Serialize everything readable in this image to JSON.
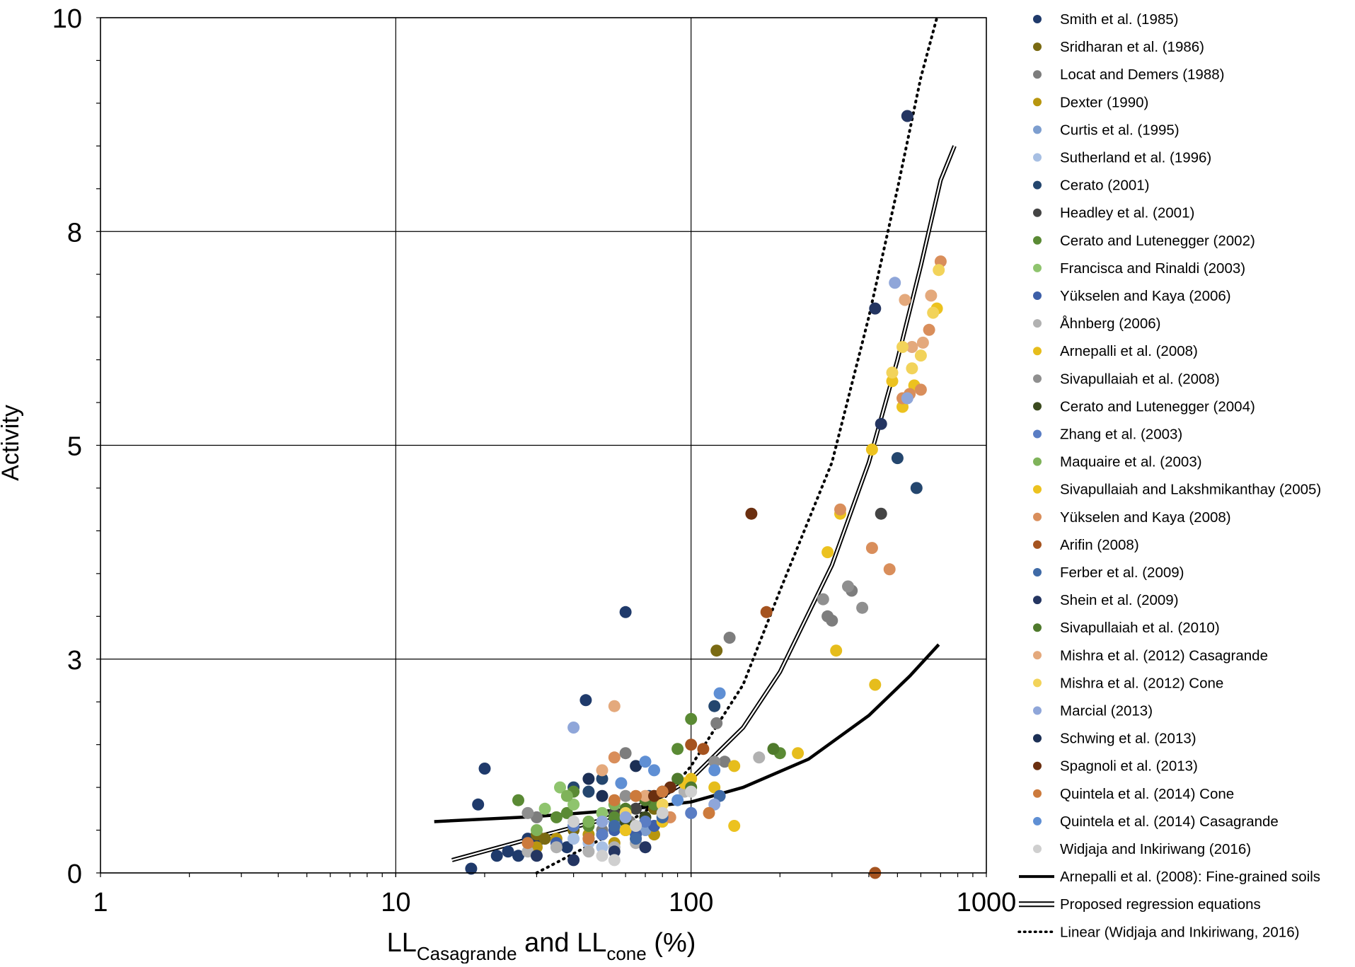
{
  "chart_data": {
    "type": "scatter",
    "xlabel": {
      "parts": [
        {
          "text": "LL",
          "sub": false
        },
        {
          "text": "Casagrande",
          "sub": true
        },
        {
          "text": " and LL",
          "sub": false
        },
        {
          "text": "cone",
          "sub": true
        },
        {
          "text": " (%)",
          "sub": false
        }
      ]
    },
    "ylabel": "Activity",
    "x_scale": "log",
    "xlim": [
      1,
      1000
    ],
    "ylim": [
      0,
      10
    ],
    "x_ticks": [
      {
        "value": 1,
        "label": "1"
      },
      {
        "value": 10,
        "label": "10"
      },
      {
        "value": 100,
        "label": "100"
      },
      {
        "value": 1000,
        "label": "1000"
      }
    ],
    "y_ticks": [
      {
        "value": 0,
        "label": "0"
      },
      {
        "value": 2.5,
        "label": "3"
      },
      {
        "value": 5,
        "label": "5"
      },
      {
        "value": 7.5,
        "label": "8"
      },
      {
        "value": 10,
        "label": "10"
      }
    ],
    "grid": true,
    "legend_position": "right",
    "series": [
      {
        "name": "Smith et al. (1985)",
        "color": "#1f3a6b",
        "points": [
          [
            18,
            0.05
          ],
          [
            19,
            0.8
          ],
          [
            20,
            1.22
          ],
          [
            22,
            0.2
          ],
          [
            24,
            0.25
          ],
          [
            26,
            0.2
          ],
          [
            28,
            0.4
          ],
          [
            30,
            0.35
          ],
          [
            38,
            0.3
          ],
          [
            44,
            2.02
          ],
          [
            60,
            3.05
          ]
        ]
      },
      {
        "name": "Sridharan et al. (1986)",
        "color": "#7a6a12",
        "points": [
          [
            30,
            0.45
          ],
          [
            32,
            0.4
          ],
          [
            35,
            0.35
          ],
          [
            40,
            0.5
          ],
          [
            75,
            0.75
          ],
          [
            122,
            2.6
          ]
        ]
      },
      {
        "name": "Locat and Demers (1988)",
        "color": "#7d7d7d",
        "points": [
          [
            30,
            0.65
          ],
          [
            50,
            0.5
          ],
          [
            60,
            1.4
          ],
          [
            62,
            0.6
          ],
          [
            122,
            1.75
          ],
          [
            130,
            1.3
          ],
          [
            135,
            2.75
          ],
          [
            290,
            3.0
          ],
          [
            300,
            2.95
          ],
          [
            350,
            3.3
          ]
        ]
      },
      {
        "name": "Dexter (1990)",
        "color": "#b8960f",
        "points": [
          [
            30,
            0.3
          ],
          [
            35,
            0.4
          ],
          [
            45,
            0.45
          ],
          [
            55,
            0.35
          ],
          [
            65,
            0.4
          ],
          [
            75,
            0.45
          ]
        ]
      },
      {
        "name": "Curtis et al. (1995)",
        "color": "#7d9ecf",
        "points": [
          [
            55,
            0.6
          ],
          [
            60,
            0.5
          ],
          [
            70,
            0.5
          ],
          [
            80,
            0.6
          ]
        ]
      },
      {
        "name": "Sutherland et al. (1996)",
        "color": "#a7bfe3",
        "points": [
          [
            40,
            0.4
          ],
          [
            45,
            0.35
          ],
          [
            50,
            0.3
          ],
          [
            60,
            0.55
          ]
        ]
      },
      {
        "name": "Cerato (2001)",
        "color": "#24466e",
        "points": [
          [
            40,
            1.0
          ],
          [
            45,
            0.95
          ],
          [
            50,
            1.1
          ],
          [
            72,
            0.9
          ],
          [
            120,
            1.95
          ],
          [
            500,
            4.85
          ],
          [
            580,
            4.5
          ]
        ]
      },
      {
        "name": "Headley et al. (2001)",
        "color": "#444444",
        "points": [
          [
            55,
            0.7
          ],
          [
            65,
            0.75
          ],
          [
            75,
            0.8
          ],
          [
            440,
            4.2
          ]
        ]
      },
      {
        "name": "Cerato and Lutenegger (2002)",
        "color": "#5a8a34",
        "points": [
          [
            26,
            0.85
          ],
          [
            35,
            0.65
          ],
          [
            38,
            0.7
          ],
          [
            40,
            0.95
          ],
          [
            45,
            0.55
          ],
          [
            55,
            0.65
          ],
          [
            75,
            0.8
          ],
          [
            90,
            1.45
          ],
          [
            100,
            1.8
          ],
          [
            200,
            1.4
          ]
        ]
      },
      {
        "name": "Francisca and Rinaldi (2003)",
        "color": "#8fc46e",
        "points": [
          [
            32,
            0.75
          ],
          [
            36,
            1.0
          ],
          [
            40,
            0.8
          ],
          [
            45,
            0.6
          ],
          [
            50,
            0.7
          ]
        ]
      },
      {
        "name": "Yükselen and Kaya (2006)",
        "color": "#3d5fa8",
        "points": [
          [
            35,
            0.35
          ],
          [
            45,
            0.4
          ],
          [
            55,
            0.5
          ],
          [
            65,
            0.45
          ],
          [
            75,
            0.55
          ]
        ]
      },
      {
        "name": "Åhnberg (2006)",
        "color": "#b1b1b1",
        "points": [
          [
            28,
            0.25
          ],
          [
            35,
            0.3
          ],
          [
            45,
            0.25
          ],
          [
            55,
            0.3
          ],
          [
            65,
            0.35
          ],
          [
            95,
            0.95
          ],
          [
            170,
            1.35
          ]
        ]
      },
      {
        "name": "Arnepalli et al. (2008)",
        "color": "#e6bd1c",
        "points": [
          [
            100,
            1.1
          ],
          [
            120,
            1.0
          ],
          [
            140,
            1.25
          ],
          [
            230,
            1.4
          ],
          [
            310,
            2.6
          ],
          [
            420,
            2.2
          ]
        ]
      },
      {
        "name": "Sivapullaiah et al. (2008)",
        "color": "#8f8f8f",
        "points": [
          [
            28,
            0.7
          ],
          [
            60,
            0.9
          ],
          [
            120,
            1.3
          ],
          [
            280,
            3.2
          ],
          [
            340,
            3.35
          ],
          [
            380,
            3.1
          ]
        ]
      },
      {
        "name": "Cerato and Lutenegger (2004)",
        "color": "#3b4a1f",
        "points": [
          [
            50,
            0.45
          ],
          [
            60,
            0.6
          ],
          [
            70,
            0.65
          ],
          [
            80,
            0.7
          ]
        ]
      },
      {
        "name": "Zhang et al. (2003)",
        "color": "#5a7dc4",
        "points": [
          [
            40,
            0.55
          ],
          [
            50,
            0.45
          ],
          [
            60,
            0.5
          ],
          [
            70,
            0.6
          ],
          [
            100,
            0.7
          ]
        ]
      },
      {
        "name": "Maquaire et al. (2003)",
        "color": "#7fb35a",
        "points": [
          [
            30,
            0.5
          ],
          [
            38,
            0.9
          ],
          [
            45,
            0.6
          ],
          [
            55,
            0.8
          ]
        ]
      },
      {
        "name": "Sivapullaiah and Lakshmikanthay (2005)",
        "color": "#ecc21f",
        "points": [
          [
            60,
            0.5
          ],
          [
            80,
            0.6
          ],
          [
            95,
            1.05
          ],
          [
            140,
            0.55
          ],
          [
            290,
            3.75
          ],
          [
            320,
            4.2
          ],
          [
            410,
            4.95
          ],
          [
            480,
            5.75
          ],
          [
            520,
            5.45
          ],
          [
            570,
            5.7
          ],
          [
            680,
            6.6
          ]
        ]
      },
      {
        "name": "Yükselen and Kaya (2008)",
        "color": "#d98e5b",
        "points": [
          [
            55,
            1.35
          ],
          [
            75,
            0.9
          ],
          [
            85,
            0.65
          ],
          [
            320,
            4.25
          ],
          [
            410,
            3.8
          ],
          [
            470,
            3.55
          ],
          [
            520,
            5.55
          ],
          [
            550,
            5.6
          ],
          [
            600,
            5.65
          ],
          [
            640,
            6.35
          ],
          [
            700,
            7.15
          ]
        ]
      },
      {
        "name": "Arifin (2008)",
        "color": "#a5531f",
        "points": [
          [
            100,
            1.5
          ],
          [
            110,
            1.45
          ],
          [
            180,
            3.05
          ],
          [
            420,
            0.0
          ]
        ]
      },
      {
        "name": "Ferber et al. (2009)",
        "color": "#3f6aa6",
        "points": [
          [
            55,
            0.55
          ],
          [
            65,
            0.4
          ],
          [
            80,
            0.65
          ],
          [
            125,
            0.9
          ]
        ]
      },
      {
        "name": "Shein et al. (2009)",
        "color": "#243561",
        "points": [
          [
            30,
            0.2
          ],
          [
            40,
            0.15
          ],
          [
            55,
            0.25
          ],
          [
            70,
            0.3
          ],
          [
            420,
            6.6
          ],
          [
            440,
            5.25
          ],
          [
            540,
            8.85
          ]
        ]
      },
      {
        "name": "Sivapullaiah et al. (2010)",
        "color": "#4f7a2c",
        "points": [
          [
            60,
            0.75
          ],
          [
            70,
            0.85
          ],
          [
            90,
            1.1
          ],
          [
            100,
            1.0
          ],
          [
            190,
            1.45
          ]
        ]
      },
      {
        "name": "Mishra et al. (2012) Casagrande",
        "color": "#e4a97c",
        "points": [
          [
            50,
            1.2
          ],
          [
            55,
            1.95
          ],
          [
            70,
            0.9
          ],
          [
            530,
            6.7
          ],
          [
            560,
            6.15
          ],
          [
            610,
            6.2
          ],
          [
            650,
            6.75
          ]
        ]
      },
      {
        "name": "Mishra et al. (2012) Cone",
        "color": "#f2d35a",
        "points": [
          [
            60,
            0.7
          ],
          [
            80,
            0.8
          ],
          [
            480,
            5.85
          ],
          [
            520,
            6.15
          ],
          [
            560,
            5.9
          ],
          [
            600,
            6.05
          ],
          [
            660,
            6.55
          ],
          [
            690,
            7.05
          ]
        ]
      },
      {
        "name": "Marcial (2013)",
        "color": "#8fa6d9",
        "points": [
          [
            40,
            1.7
          ],
          [
            50,
            0.6
          ],
          [
            60,
            0.65
          ],
          [
            120,
            0.8
          ],
          [
            490,
            6.9
          ],
          [
            540,
            5.55
          ]
        ]
      },
      {
        "name": "Schwing et al. (2013)",
        "color": "#1c2f55",
        "points": [
          [
            45,
            1.1
          ],
          [
            50,
            0.9
          ],
          [
            65,
            1.25
          ],
          [
            80,
            0.95
          ]
        ]
      },
      {
        "name": "Spagnoli et al. (2013)",
        "color": "#6b2f10",
        "points": [
          [
            75,
            0.9
          ],
          [
            85,
            1.0
          ],
          [
            160,
            4.2
          ]
        ]
      },
      {
        "name": "Quintela et al. (2014) Cone",
        "color": "#cc7a3c",
        "points": [
          [
            28,
            0.35
          ],
          [
            45,
            0.4
          ],
          [
            55,
            0.85
          ],
          [
            65,
            0.9
          ],
          [
            80,
            0.95
          ],
          [
            115,
            0.7
          ]
        ]
      },
      {
        "name": "Quintela et al. (2014) Casagrande",
        "color": "#5f8fd4",
        "points": [
          [
            58,
            1.05
          ],
          [
            70,
            1.3
          ],
          [
            75,
            1.2
          ],
          [
            90,
            0.85
          ],
          [
            125,
            2.1
          ],
          [
            120,
            1.2
          ]
        ]
      },
      {
        "name": "Widjaja and Inkiriwang (2016)",
        "color": "#cfcfcf",
        "points": [
          [
            40,
            0.6
          ],
          [
            50,
            0.2
          ],
          [
            55,
            0.15
          ],
          [
            65,
            0.55
          ],
          [
            80,
            0.7
          ],
          [
            100,
            0.95
          ]
        ]
      }
    ],
    "lines": [
      {
        "name": "Arnepalli et al. (2008): Fine-grained soils",
        "style": "solid",
        "color": "#000000",
        "points": [
          [
            13.5,
            0.6
          ],
          [
            30,
            0.66
          ],
          [
            60,
            0.74
          ],
          [
            100,
            0.83
          ],
          [
            150,
            1.0
          ],
          [
            250,
            1.33
          ],
          [
            400,
            1.84
          ],
          [
            550,
            2.3
          ],
          [
            690,
            2.67
          ]
        ]
      },
      {
        "name": "Proposed regression equations",
        "style": "double",
        "color": "#000000",
        "points": [
          [
            15.5,
            0.15
          ],
          [
            30,
            0.42
          ],
          [
            50,
            0.62
          ],
          [
            80,
            0.9
          ],
          [
            100,
            1.1
          ],
          [
            150,
            1.7
          ],
          [
            200,
            2.35
          ],
          [
            300,
            3.6
          ],
          [
            400,
            4.8
          ],
          [
            500,
            6.0
          ],
          [
            600,
            7.1
          ],
          [
            700,
            8.1
          ],
          [
            780,
            8.5
          ]
        ]
      },
      {
        "name": "Linear (Widjaja and Inkiriwang, 2016)",
        "style": "dotted",
        "color": "#000000",
        "points": [
          [
            30,
            0.0
          ],
          [
            50,
            0.4
          ],
          [
            80,
            0.85
          ],
          [
            100,
            1.25
          ],
          [
            150,
            2.2
          ],
          [
            200,
            3.3
          ],
          [
            300,
            4.8
          ],
          [
            400,
            6.5
          ],
          [
            500,
            8.0
          ],
          [
            600,
            9.3
          ],
          [
            680,
            10.0
          ]
        ]
      }
    ]
  }
}
